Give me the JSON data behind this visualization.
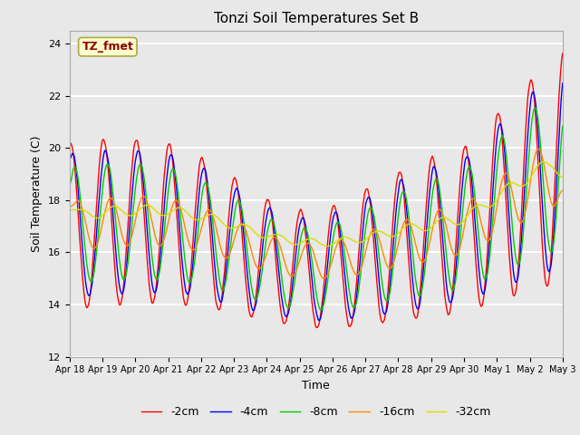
{
  "title": "Tonzi Soil Temperatures Set B",
  "xlabel": "Time",
  "ylabel": "Soil Temperature (C)",
  "annotation_text": "TZ_fmet",
  "annotation_color": "#8B0000",
  "annotation_bg": "#FFFFCC",
  "ylim": [
    12,
    24.5
  ],
  "series_colors": {
    "-2cm": "#FF0000",
    "-4cm": "#0000FF",
    "-8cm": "#00CC00",
    "-16cm": "#FF8800",
    "-32cm": "#DDDD00"
  },
  "series_order": [
    "-2cm",
    "-4cm",
    "-8cm",
    "-16cm",
    "-32cm"
  ],
  "background_color": "#E8E8E8",
  "axes_bg": "#E8E8E8",
  "grid_color": "#FFFFFF",
  "tick_labels": [
    "Apr 18",
    "Apr 19",
    "Apr 20",
    "Apr 21",
    "Apr 22",
    "Apr 23",
    "Apr 24",
    "Apr 25",
    "Apr 26",
    "Apr 27",
    "Apr 28",
    "Apr 29",
    "Apr 30",
    "May 1",
    "May 2",
    "May 3"
  ],
  "yticks": [
    12,
    14,
    16,
    18,
    20,
    22,
    24
  ]
}
